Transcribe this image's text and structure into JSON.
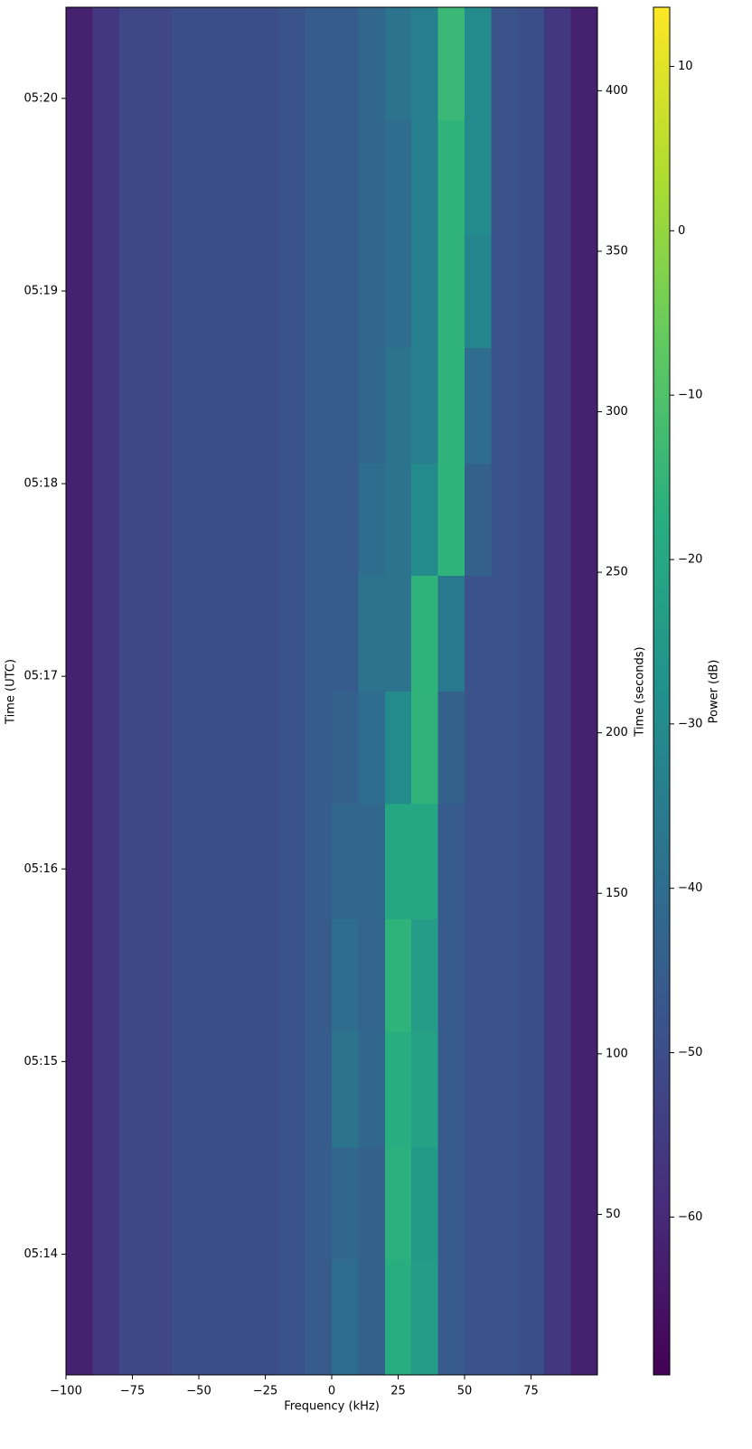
{
  "chart_data": {
    "type": "heatmap",
    "colormap": "viridis",
    "xlabel": "Frequency (kHz)",
    "ylabel": "Time (UTC)",
    "y2label": "Time (seconds)",
    "colorbar_label": "Power (dB)",
    "x_edges": [
      -100,
      -90,
      -80,
      -70,
      -60,
      -50,
      -40,
      -30,
      -20,
      -10,
      0,
      10,
      20,
      30,
      40,
      50,
      60,
      70,
      80,
      90,
      100
    ],
    "y_edges": [
      0,
      36,
      71,
      107,
      142,
      178,
      213,
      249,
      284,
      320,
      355,
      391,
      426
    ],
    "values": [
      [
        -62,
        -56,
        -52,
        -52,
        -50,
        -50,
        -50,
        -50,
        -48,
        -46,
        -40,
        -44,
        -18,
        -24,
        -46,
        -48,
        -48,
        -50,
        -56,
        -62
      ],
      [
        -62,
        -56,
        -52,
        -52,
        -50,
        -50,
        -50,
        -50,
        -48,
        -46,
        -42,
        -44,
        -17,
        -25,
        -46,
        -48,
        -48,
        -50,
        -56,
        -62
      ],
      [
        -62,
        -56,
        -52,
        -52,
        -50,
        -50,
        -50,
        -50,
        -48,
        -46,
        -38,
        -42,
        -18,
        -22,
        -46,
        -48,
        -48,
        -50,
        -56,
        -62
      ],
      [
        -62,
        -56,
        -52,
        -52,
        -50,
        -50,
        -50,
        -50,
        -48,
        -46,
        -40,
        -43,
        -16,
        -24,
        -46,
        -48,
        -48,
        -50,
        -56,
        -62
      ],
      [
        -62,
        -56,
        -52,
        -52,
        -50,
        -50,
        -50,
        -50,
        -48,
        -46,
        -42,
        -42,
        -20,
        -20,
        -46,
        -48,
        -48,
        -50,
        -56,
        -62
      ],
      [
        -62,
        -56,
        -52,
        -52,
        -50,
        -50,
        -50,
        -50,
        -48,
        -46,
        -44,
        -40,
        -30,
        -16,
        -44,
        -48,
        -48,
        -50,
        -56,
        -62
      ],
      [
        -62,
        -56,
        -52,
        -52,
        -50,
        -50,
        -50,
        -50,
        -48,
        -46,
        -46,
        -38,
        -38,
        -16,
        -36,
        -48,
        -48,
        -50,
        -56,
        -62
      ],
      [
        -62,
        -56,
        -52,
        -52,
        -50,
        -50,
        -50,
        -50,
        -48,
        -46,
        -46,
        -40,
        -38,
        -30,
        -16,
        -44,
        -48,
        -50,
        -56,
        -62
      ],
      [
        -62,
        -56,
        -52,
        -52,
        -50,
        -50,
        -50,
        -50,
        -48,
        -46,
        -46,
        -42,
        -38,
        -34,
        -16,
        -40,
        -48,
        -50,
        -56,
        -62
      ],
      [
        -62,
        -56,
        -52,
        -52,
        -50,
        -50,
        -50,
        -50,
        -48,
        -46,
        -46,
        -42,
        -40,
        -34,
        -16,
        -32,
        -48,
        -50,
        -56,
        -62
      ],
      [
        -62,
        -56,
        -52,
        -52,
        -50,
        -50,
        -50,
        -50,
        -48,
        -46,
        -46,
        -42,
        -40,
        -34,
        -16,
        -30,
        -48,
        -50,
        -56,
        -62
      ],
      [
        -62,
        -56,
        -52,
        -52,
        -50,
        -50,
        -50,
        -50,
        -48,
        -46,
        -46,
        -42,
        -38,
        -34,
        -14,
        -30,
        -48,
        -50,
        -56,
        -62
      ]
    ],
    "xlim": [
      -100,
      100
    ],
    "xticks": [
      {
        "value": -100,
        "label": "−100"
      },
      {
        "value": -75,
        "label": "−75"
      },
      {
        "value": -50,
        "label": "−50"
      },
      {
        "value": -25,
        "label": "−25"
      },
      0,
      25,
      50,
      75
    ],
    "ylim": [
      0,
      426
    ],
    "yticks": [
      {
        "value": 37.6,
        "label": "05:14"
      },
      {
        "value": 97.6,
        "label": "05:15"
      },
      {
        "value": 157.6,
        "label": "05:16"
      },
      {
        "value": 217.6,
        "label": "05:17"
      },
      {
        "value": 277.6,
        "label": "05:18"
      },
      {
        "value": 337.6,
        "label": "05:19"
      },
      {
        "value": 397.6,
        "label": "05:20"
      }
    ],
    "y2lim": [
      0,
      426
    ],
    "y2ticks": [
      50,
      100,
      150,
      200,
      250,
      300,
      350,
      400
    ],
    "clim": [
      -69.6,
      13.6
    ],
    "cticks": [
      {
        "value": -60,
        "label": "−60"
      },
      {
        "value": -50,
        "label": "−50"
      },
      {
        "value": -40,
        "label": "−40"
      },
      {
        "value": -30,
        "label": "−30"
      },
      {
        "value": -20,
        "label": "−20"
      },
      {
        "value": -10,
        "label": "−10"
      },
      0,
      10
    ]
  }
}
